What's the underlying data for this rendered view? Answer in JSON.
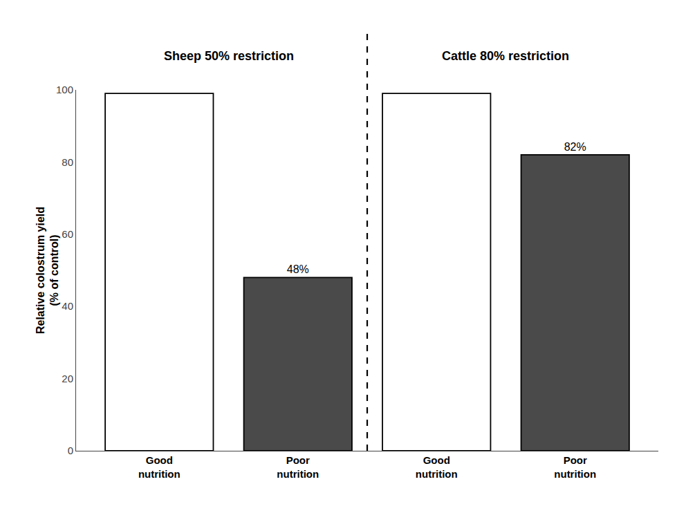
{
  "chart_data": {
    "type": "bar",
    "categories": [
      "Good\nnutrition",
      "Poor\nnutrition",
      "Good\nnutrition",
      "Poor\nnutrition"
    ],
    "values": [
      99,
      48,
      99,
      82
    ],
    "value_labels": [
      null,
      "48%",
      null,
      "82%"
    ],
    "data_labels": true,
    "colors": [
      "#ffffff",
      "#4a4a4a",
      "#ffffff",
      "#4a4a4a"
    ],
    "ylabel": "Relative colostrum yield\n(% of control)",
    "annotations": [
      "Sheep 50% restriction",
      "Cattle 80% restriction"
    ],
    "ylim": [
      0,
      100
    ],
    "yticks": [
      0,
      20,
      40,
      60,
      80,
      100
    ],
    "grid": false
  }
}
